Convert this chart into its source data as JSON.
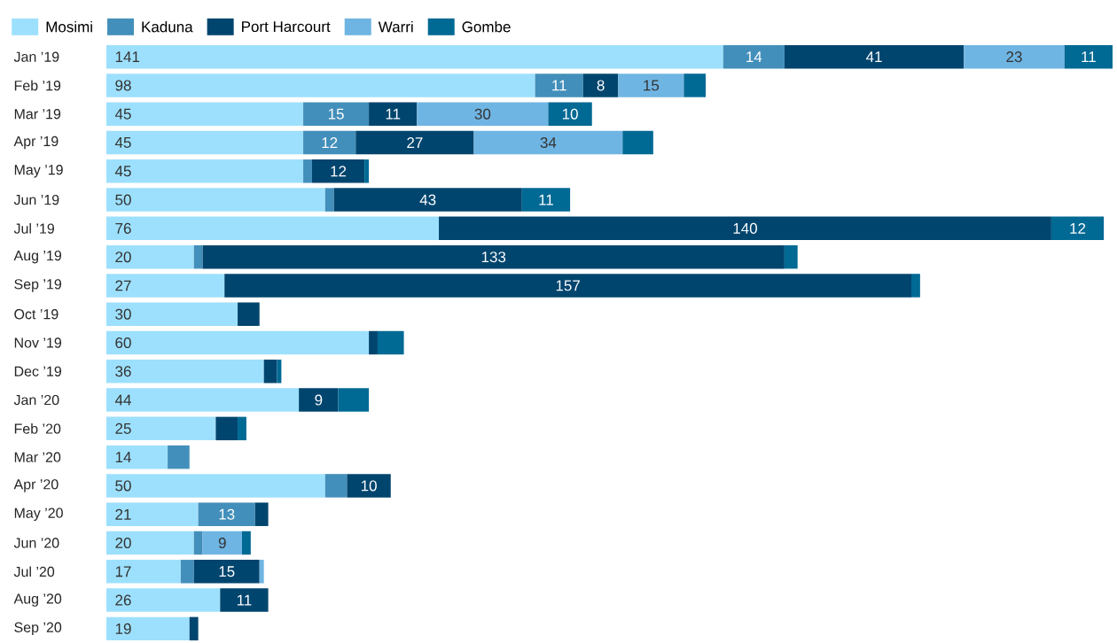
{
  "chart_data": {
    "type": "bar",
    "orientation": "horizontal",
    "stacked": true,
    "legend": "top",
    "categories": [
      "Jan ’19",
      "Feb ’19",
      "Mar ’19",
      "Apr ’19",
      "May ’19",
      "Jun ’19",
      "Jul ’19",
      "Aug ’19",
      "Sep ’19",
      "Oct ’19",
      "Nov ’19",
      "Dec ’19",
      "Jan ’20",
      "Feb ’20",
      "Mar ’20",
      "Apr ’20",
      "May ’20",
      "Jun ’20",
      "Jul ’20",
      "Aug ’20",
      "Sep ’20"
    ],
    "series": [
      {
        "name": "Mosimi",
        "color": "#9de0fd",
        "values": [
          141,
          98,
          45,
          45,
          45,
          50,
          76,
          20,
          27,
          30,
          60,
          36,
          44,
          25,
          14,
          50,
          21,
          20,
          17,
          26,
          19
        ],
        "value_labels": [
          "141",
          "98",
          "45",
          "45",
          "45",
          "50",
          "76",
          "20",
          "27",
          "30",
          "60",
          "36",
          "44",
          "25",
          "14",
          "50",
          "21",
          "20",
          "17",
          "26",
          "19"
        ]
      },
      {
        "name": "Kaduna",
        "color": "#438fbb",
        "values": [
          14,
          11,
          15,
          12,
          2,
          2,
          null,
          2,
          null,
          null,
          null,
          null,
          null,
          null,
          5,
          5,
          13,
          2,
          3,
          null,
          null
        ],
        "value_labels": [
          "14",
          "11",
          "15",
          "12",
          null,
          null,
          null,
          null,
          null,
          null,
          null,
          null,
          null,
          null,
          null,
          null,
          "13",
          null,
          null,
          null,
          null
        ]
      },
      {
        "name": "Port Harcourt",
        "color": "#00456e",
        "values": [
          41,
          8,
          11,
          27,
          12,
          43,
          140,
          133,
          157,
          5,
          2,
          3,
          9,
          5,
          null,
          10,
          3,
          null,
          15,
          11,
          2
        ],
        "value_labels": [
          "41",
          "8",
          "11",
          "27",
          "12",
          "43",
          "140",
          "133",
          "157",
          null,
          null,
          null,
          "9",
          null,
          null,
          "10",
          null,
          null,
          "15",
          "11",
          null
        ]
      },
      {
        "name": "Warri",
        "color": "#6fb5e3",
        "values": [
          23,
          15,
          30,
          34,
          null,
          null,
          null,
          null,
          null,
          null,
          null,
          null,
          null,
          null,
          null,
          null,
          null,
          9,
          1,
          null,
          null
        ],
        "value_labels": [
          "23",
          "15",
          "30",
          "34",
          null,
          null,
          null,
          null,
          null,
          null,
          null,
          null,
          null,
          null,
          null,
          null,
          null,
          "9",
          null,
          null,
          null
        ]
      },
      {
        "name": "Gombe",
        "color": "#006994",
        "values": [
          11,
          5,
          10,
          7,
          1,
          11,
          12,
          3,
          2,
          null,
          6,
          1,
          7,
          2,
          null,
          null,
          null,
          2,
          null,
          null,
          null
        ],
        "value_labels": [
          "11",
          null,
          "10",
          null,
          null,
          "11",
          "12",
          null,
          null,
          null,
          null,
          null,
          null,
          null,
          null,
          null,
          null,
          null,
          null,
          null,
          null
        ]
      }
    ]
  }
}
